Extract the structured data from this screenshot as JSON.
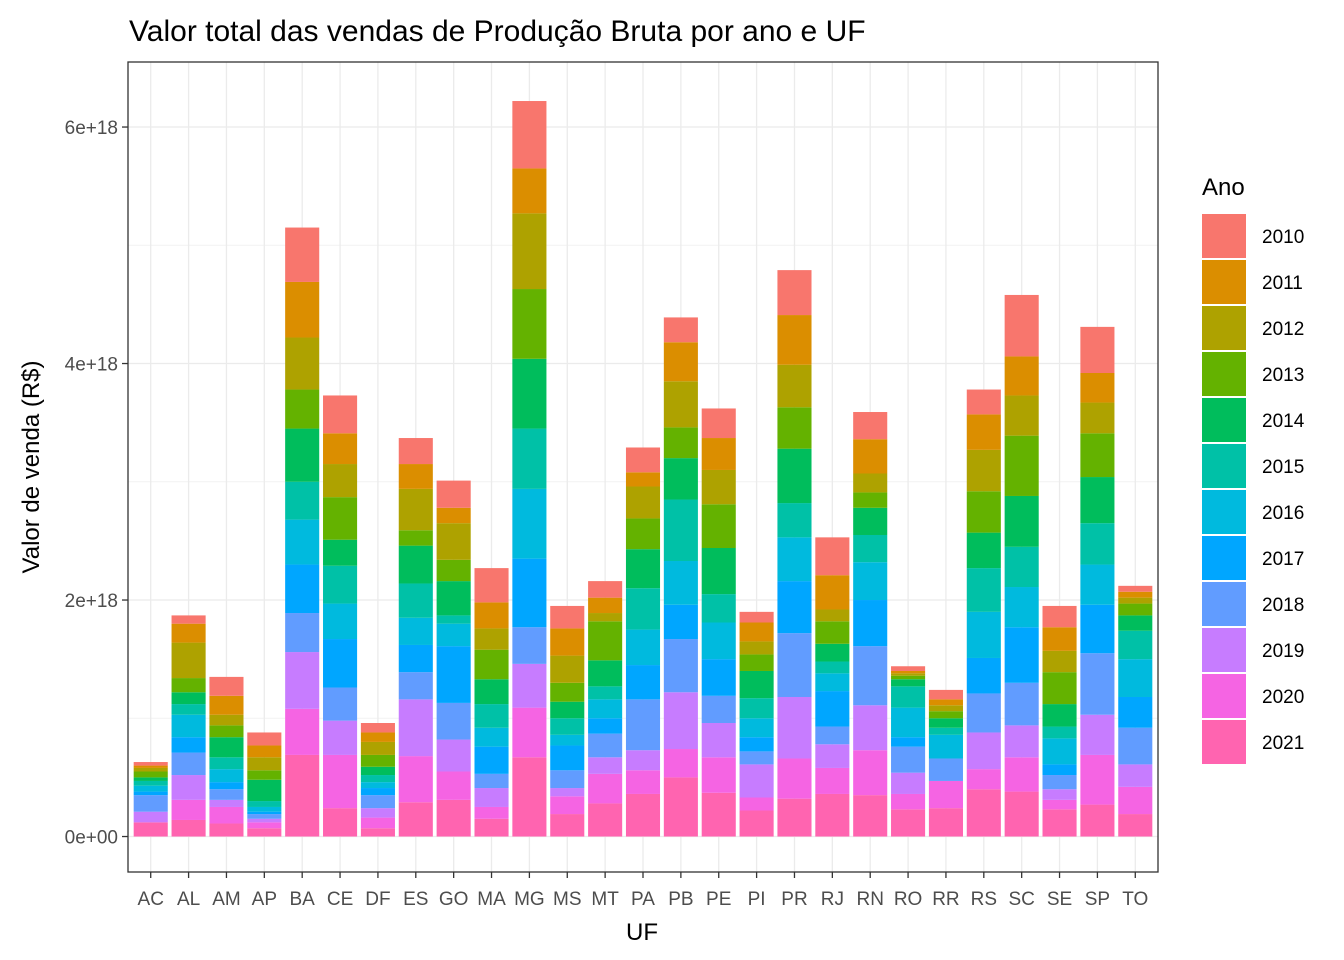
{
  "chart_data": {
    "type": "bar",
    "stacked": true,
    "title": "Valor total das vendas de Produção Bruta por ano e UF",
    "xlabel": "UF",
    "ylabel": "Valor de venda (R$)",
    "ylim": [
      -3e+17,
      6.55e+18
    ],
    "yticks": [
      0,
      2e+18,
      4e+18,
      6e+18
    ],
    "ytick_labels": [
      "0e+00",
      "2e+18",
      "4e+18",
      "6e+18"
    ],
    "grid": true,
    "legend": {
      "title": "Ano",
      "position": "right"
    },
    "categories": [
      "AC",
      "AL",
      "AM",
      "AP",
      "BA",
      "CE",
      "DF",
      "ES",
      "GO",
      "MA",
      "MG",
      "MS",
      "MT",
      "PA",
      "PB",
      "PE",
      "PI",
      "PR",
      "RJ",
      "RN",
      "RO",
      "RR",
      "RS",
      "SC",
      "SE",
      "SP",
      "TO"
    ],
    "series": [
      {
        "name": "2010",
        "color": "#F8766D",
        "values": [
          3e+16,
          7e+16,
          1.6e+17,
          1.1e+17,
          4.6e+17,
          3.2e+17,
          8e+16,
          2.2e+17,
          2.3e+17,
          2.9e+17,
          5.7e+17,
          1.9e+17,
          1.4e+17,
          2.1e+17,
          2.1e+17,
          2.5e+17,
          9e+16,
          3.8e+17,
          3.2e+17,
          2.3e+17,
          4e+16,
          8e+16,
          2.1e+17,
          5.2e+17,
          1.8e+17,
          3.9e+17,
          5e+16
        ]
      },
      {
        "name": "2011",
        "color": "#DB8E00",
        "values": [
          2e+16,
          1.6e+17,
          1.6e+17,
          1e+17,
          4.7e+17,
          2.6e+17,
          8e+16,
          2.1e+17,
          1.3e+17,
          2.2e+17,
          3.8e+17,
          2.3e+17,
          1.3e+17,
          1.2e+17,
          3.3e+17,
          2.7e+17,
          1.6e+17,
          4.2e+17,
          2.9e+17,
          2.9e+17,
          2e+16,
          5e+16,
          3e+17,
          3.3e+17,
          2e+17,
          2.5e+17,
          5e+16
        ]
      },
      {
        "name": "2012",
        "color": "#AEA200",
        "values": [
          3e+16,
          3e+17,
          9e+16,
          1.1e+17,
          4.4e+17,
          2.8e+17,
          1.1e+17,
          3.5e+17,
          3.1e+17,
          1.8e+17,
          6.4e+17,
          2.3e+17,
          7e+16,
          2.7e+17,
          3.9e+17,
          2.9e+17,
          1.1e+17,
          3.6e+17,
          1e+17,
          1.6e+17,
          2e+16,
          5e+16,
          3.5e+17,
          3.4e+17,
          1.8e+17,
          2.6e+17,
          5e+16
        ]
      },
      {
        "name": "2013",
        "color": "#64B200",
        "values": [
          5e+16,
          1.2e+17,
          1e+17,
          8e+16,
          3.3e+17,
          3.6e+17,
          1e+17,
          1.3e+17,
          1.8e+17,
          2.5e+17,
          5.9e+17,
          1.6e+17,
          3.3e+17,
          2.6e+17,
          2.6e+17,
          3.7e+17,
          1.4e+17,
          3.5e+17,
          1.9e+17,
          1.3e+17,
          3e+16,
          6e+16,
          3.5e+17,
          5.1e+17,
          2.7e+17,
          3.7e+17,
          1e+17
        ]
      },
      {
        "name": "2014",
        "color": "#00BD5C",
        "values": [
          3e+16,
          1e+17,
          1.7e+17,
          1.8e+17,
          4.5e+17,
          2.2e+17,
          7e+16,
          3.2e+17,
          2.9e+17,
          2.1e+17,
          5.9e+17,
          1.4e+17,
          2.2e+17,
          3.3e+17,
          3.5e+17,
          3.9e+17,
          2.3e+17,
          4.6e+17,
          1.5e+17,
          2.3e+17,
          6e+16,
          8e+16,
          3e+17,
          4.3e+17,
          1.9e+17,
          3.9e+17,
          1.3e+17
        ]
      },
      {
        "name": "2015",
        "color": "#00C1A7",
        "values": [
          4e+16,
          9e+16,
          1e+17,
          5e+16,
          3.2e+17,
          3.2e+17,
          6e+16,
          2.9e+17,
          7e+16,
          2e+17,
          5.1e+17,
          1.4e+17,
          1.1e+17,
          3.5e+17,
          5.2e+17,
          2.4e+17,
          1.7e+17,
          2.9e+17,
          1e+17,
          2.3e+17,
          1.8e+17,
          6e+16,
          3.7e+17,
          3.4e+17,
          1e+17,
          3.5e+17,
          2.4e+17
        ]
      },
      {
        "name": "2016",
        "color": "#00BADE",
        "values": [
          5e+16,
          1.9e+17,
          1.1e+17,
          4e+16,
          3.8e+17,
          3e+17,
          5e+16,
          2.3e+17,
          1.9e+17,
          1.6e+17,
          5.9e+17,
          9e+16,
          1.6e+17,
          3e+17,
          3.7e+17,
          3.1e+17,
          1.6e+17,
          3.7e+17,
          1.5e+17,
          3.2e+17,
          2.5e+17,
          2e+17,
          3.9e+17,
          3.4e+17,
          2.2e+17,
          3.4e+17,
          3.2e+17
        ]
      },
      {
        "name": "2017",
        "color": "#00A6FF",
        "values": [
          3e+16,
          1.3e+17,
          6e+16,
          2e+16,
          4.1e+17,
          4.1e+17,
          6e+16,
          2.3e+17,
          4.8e+17,
          2.3e+17,
          5.8e+17,
          2.1e+17,
          1.3e+17,
          2.9e+17,
          2.9e+17,
          3.1e+17,
          1.2e+17,
          4.4e+17,
          3e+17,
          3.9e+17,
          8e+16,
          0.0,
          3e+17,
          4.7e+17,
          9e+16,
          4.1e+17,
          2.6e+17
        ]
      },
      {
        "name": "2018",
        "color": "#619CFF",
        "values": [
          1.4e+17,
          1.9e+17,
          9e+16,
          4e+16,
          3.3e+17,
          2.8e+17,
          1.1e+17,
          2.3e+17,
          3.1e+17,
          1.2e+17,
          3.1e+17,
          1.5e+17,
          2e+17,
          4.3e+17,
          4.5e+17,
          2.3e+17,
          1.1e+17,
          5.4e+17,
          1.5e+17,
          5e+17,
          2.2e+17,
          1.9e+17,
          3.3e+17,
          3.6e+17,
          1.2e+17,
          5.2e+17,
          3.1e+17
        ]
      },
      {
        "name": "2019",
        "color": "#C77CFF",
        "values": [
          9e+16,
          2.1e+17,
          6e+16,
          3e+16,
          4.8e+17,
          2.9e+17,
          8e+16,
          4.8e+17,
          2.7e+17,
          1.6e+17,
          3.7e+17,
          7e+16,
          1.4e+17,
          1.7e+17,
          4.8e+17,
          2.9e+17,
          2.8e+17,
          5.2e+17,
          2e+17,
          3.8e+17,
          1.8e+17,
          0.0,
          3.1e+17,
          2.7e+17,
          9e+16,
          3.4e+17,
          1.9e+17
        ]
      },
      {
        "name": "2020",
        "color": "#F564E3",
        "values": [
          0.0,
          1.7e+17,
          1.4e+17,
          5e+16,
          3.9e+17,
          4.5e+17,
          9e+16,
          3.9e+17,
          2.4e+17,
          1e+17,
          4.2e+17,
          1.5e+17,
          2.5e+17,
          2e+17,
          2.4e+17,
          3e+17,
          1.1e+17,
          3.4e+17,
          2.2e+17,
          3.8e+17,
          1.3e+17,
          2.3e+17,
          1.7e+17,
          2.9e+17,
          8e+16,
          4.2e+17,
          2.3e+17
        ]
      },
      {
        "name": "2021",
        "color": "#FF64B0",
        "values": [
          1.2e+17,
          1.4e+17,
          1.1e+17,
          7e+16,
          6.9e+17,
          2.4e+17,
          7e+16,
          2.9e+17,
          3.1e+17,
          1.5e+17,
          6.7e+17,
          1.9e+17,
          2.8e+17,
          3.6e+17,
          5e+17,
          3.7e+17,
          2.2e+17,
          3.2e+17,
          3.6e+17,
          3.5e+17,
          2.3e+17,
          2.4e+17,
          4e+17,
          3.8e+17,
          2.3e+17,
          2.7e+17,
          1.9e+17
        ]
      }
    ]
  }
}
